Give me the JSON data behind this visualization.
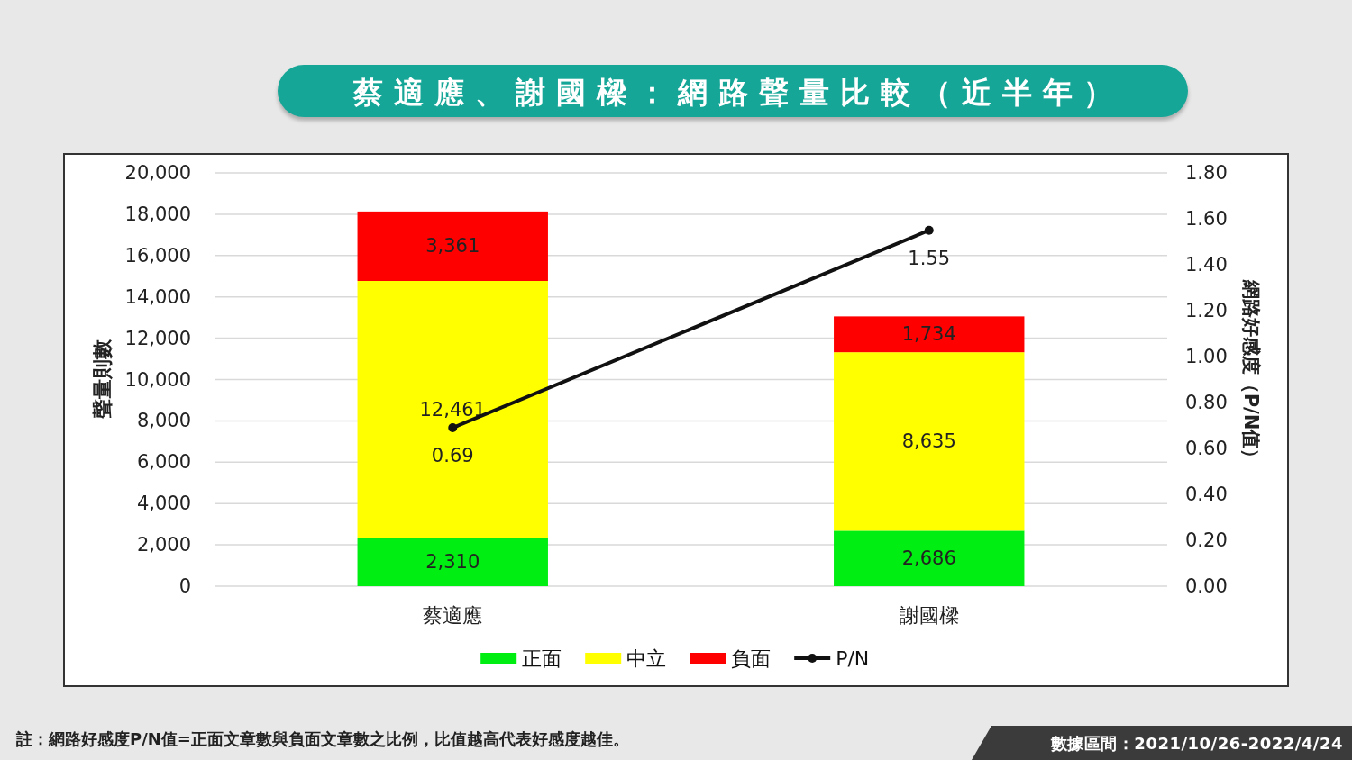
{
  "chart_data": {
    "type": "bar",
    "title": "蔡適應、謝國樑：網路聲量比較（近半年）",
    "ylabel": "聲量則數",
    "y2label": "網路好感度（P/N值）",
    "categories": [
      "蔡適應",
      "謝國樑"
    ],
    "stacked": true,
    "series": [
      {
        "name": "正面",
        "color": "#00ee11",
        "values": [
          2310,
          2686
        ],
        "value_labels": [
          "2,310",
          "2,686"
        ]
      },
      {
        "name": "中立",
        "color": "#ffff00",
        "values": [
          12461,
          8635
        ],
        "value_labels": [
          "12,461",
          "8,635"
        ]
      },
      {
        "name": "負面",
        "color": "#ff0000",
        "values": [
          3361,
          1734
        ],
        "value_labels": [
          "3,361",
          "1,734"
        ]
      },
      {
        "name": "P/N",
        "type": "line",
        "axis": "y2",
        "color": "#111111",
        "marker": "circle",
        "values": [
          0.69,
          1.55
        ],
        "value_labels": [
          "0.69",
          "1.55"
        ]
      }
    ],
    "ylim": [
      0,
      20000
    ],
    "yticks": [
      0,
      {
        "value": 2000,
        "label": "2,000"
      },
      {
        "value": 4000,
        "label": "4,000"
      },
      {
        "value": 6000,
        "label": "6,000"
      },
      {
        "value": 8000,
        "label": "8,000"
      },
      {
        "value": 10000,
        "label": "10,000"
      },
      {
        "value": 12000,
        "label": "12,000"
      },
      {
        "value": 14000,
        "label": "14,000"
      },
      {
        "value": 16000,
        "label": "16,000"
      },
      {
        "value": 18000,
        "label": "18,000"
      },
      {
        "value": 20000,
        "label": "20,000"
      }
    ],
    "y2lim": [
      0,
      1.8
    ],
    "y2ticks": [
      {
        "value": 0,
        "label": "0.00"
      },
      {
        "value": 0.2,
        "label": "0.20"
      },
      {
        "value": 0.4,
        "label": "0.40"
      },
      {
        "value": 0.6,
        "label": "0.60"
      },
      {
        "value": 0.8,
        "label": "0.80"
      },
      {
        "value": 1,
        "label": "1.00"
      },
      {
        "value": 1.2,
        "label": "1.20"
      },
      {
        "value": 1.4,
        "label": "1.40"
      },
      {
        "value": 1.6,
        "label": "1.60"
      },
      {
        "value": 1.8,
        "label": "1.80"
      }
    ],
    "grid": "y",
    "legend": "bottom",
    "annotations": [
      "註：網路好感度P/N值=正面文章數與負面文章數之比例，比值越高代表好感度越佳。",
      "數據區間：2021/10/26-2022/4/24"
    ]
  }
}
